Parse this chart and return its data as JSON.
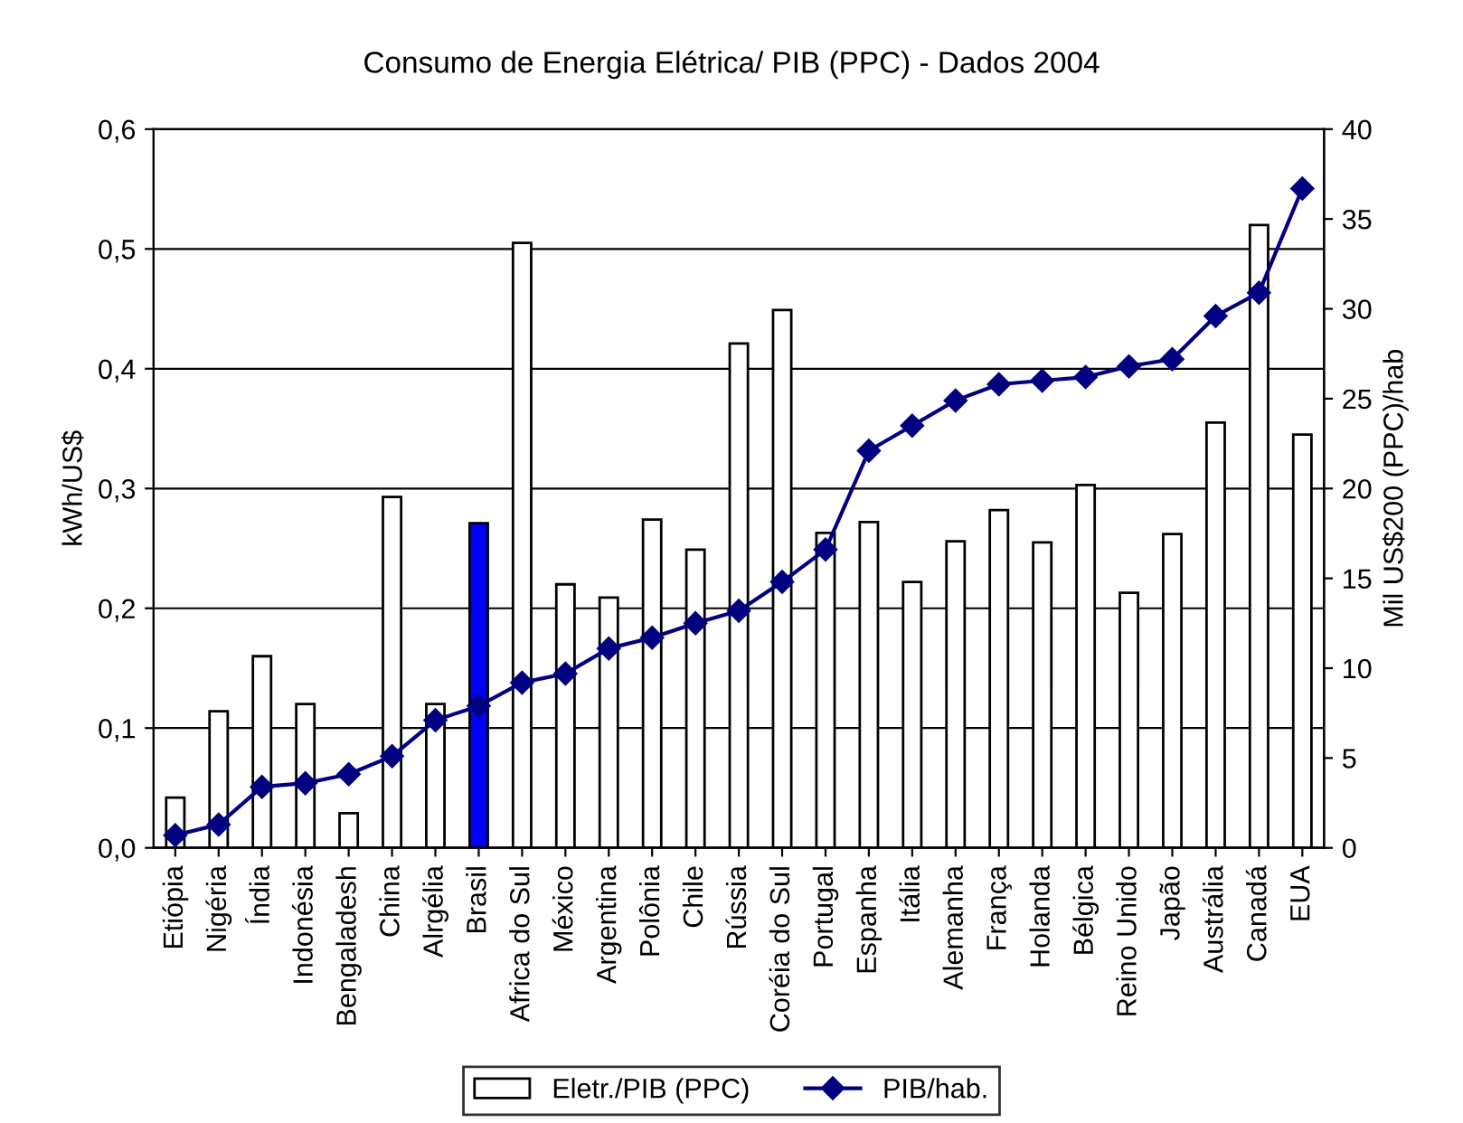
{
  "chart_data": {
    "type": "bar",
    "title": "Consumo de Energia Elétrica/ PIB (PPC) - Dados 2004",
    "categories": [
      "Etiópia",
      "Nigéria",
      "Índia",
      "Indonésia",
      "Bengaladesh",
      "China",
      "Alrgélia",
      "Brasil",
      "Africa do Sul",
      "México",
      "Argentina",
      "Polônia",
      "Chile",
      "Rússia",
      "Coréia do Sul",
      "Portugal",
      "Espanha",
      "Itália",
      "Alemanha",
      "França",
      "Holanda",
      "Bélgica",
      "Reino Unido",
      "Japão",
      "Austrália",
      "Canadá",
      "EUA"
    ],
    "series": [
      {
        "name": "Eletr./PIB (PPC)",
        "color": "#ffffff",
        "colors": [
          "#ffffff",
          "#ffffff",
          "#ffffff",
          "#ffffff",
          "#ffffff",
          "#ffffff",
          "#ffffff",
          "#0000ff",
          "#ffffff",
          "#ffffff",
          "#ffffff",
          "#ffffff",
          "#ffffff",
          "#ffffff",
          "#ffffff",
          "#ffffff",
          "#ffffff",
          "#ffffff",
          "#ffffff",
          "#ffffff",
          "#ffffff",
          "#ffffff",
          "#ffffff",
          "#ffffff",
          "#ffffff",
          "#ffffff",
          "#ffffff"
        ],
        "values": [
          0.042,
          0.114,
          0.16,
          0.12,
          0.029,
          0.293,
          0.12,
          0.271,
          0.505,
          0.22,
          0.209,
          0.274,
          0.249,
          0.421,
          0.449,
          0.263,
          0.272,
          0.222,
          0.256,
          0.282,
          0.255,
          0.303,
          0.213,
          0.262,
          0.355,
          0.52,
          0.345
        ]
      },
      {
        "name": "PIB/hab.",
        "type": "line",
        "axis": "y2",
        "color": "#000080",
        "marker": "diamond",
        "values": [
          0.7,
          1.3,
          3.4,
          3.6,
          4.1,
          5.1,
          7.1,
          7.9,
          9.2,
          9.7,
          11.1,
          11.7,
          12.5,
          13.2,
          14.8,
          16.6,
          22.1,
          23.5,
          24.9,
          25.8,
          26.0,
          26.2,
          26.8,
          27.2,
          29.6,
          30.9,
          36.7
        ]
      }
    ],
    "ylabel": "kWh/US$",
    "y2label": "Mil US$200 (PPC)/hab",
    "ylim": [
      0,
      0.6
    ],
    "yticks": [
      {
        "value": 0,
        "label": "0,0"
      },
      {
        "value": 0.1,
        "label": "0,1"
      },
      {
        "value": 0.2,
        "label": "0,2"
      },
      {
        "value": 0.3,
        "label": "0,3"
      },
      {
        "value": 0.4,
        "label": "0,4"
      },
      {
        "value": 0.5,
        "label": "0,5"
      },
      {
        "value": 0.6,
        "label": "0,6"
      }
    ],
    "y2lim": [
      0,
      40
    ],
    "y2ticks": [
      0,
      5,
      10,
      15,
      20,
      25,
      30,
      35,
      40
    ],
    "grid": "y",
    "legend": "bottom"
  }
}
